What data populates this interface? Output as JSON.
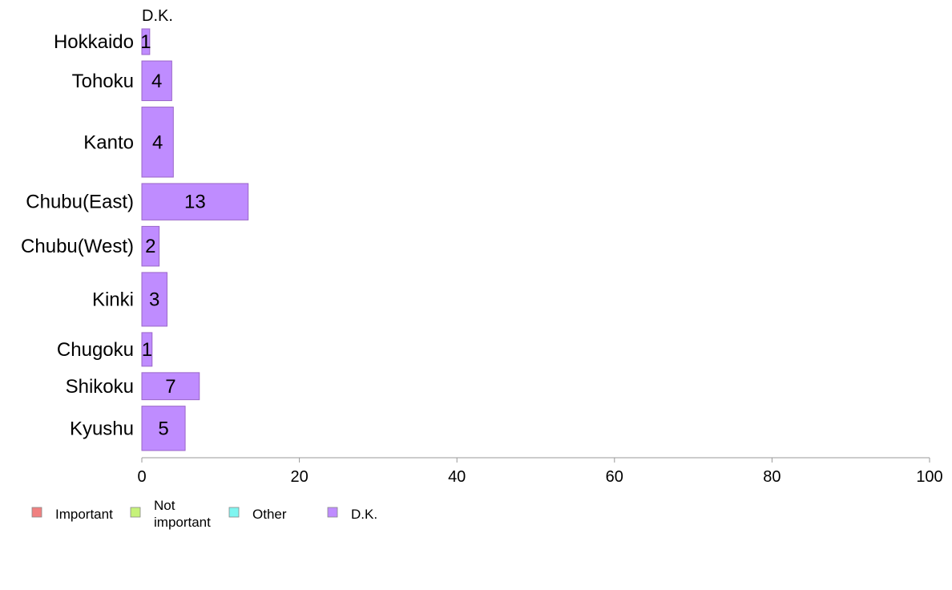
{
  "chart_data": {
    "type": "bar",
    "orientation": "horizontal",
    "stacked": true,
    "categories": [
      "Hokkaido",
      "Tohoku",
      "Kanto",
      "Chubu(East)",
      "Chubu(West)",
      "Kinki",
      "Chugoku",
      "Shikoku",
      "Kyushu"
    ],
    "category_weights": [
      0.55,
      0.85,
      1.5,
      0.78,
      0.85,
      1.15,
      0.72,
      0.58,
      0.95
    ],
    "bar_lengths_pct": [
      1.0,
      3.8,
      4.0,
      13.5,
      2.2,
      3.2,
      1.3,
      7.3,
      5.5
    ],
    "series": [
      {
        "name": "Important",
        "color": "#f08080",
        "values": [
          0,
          0,
          0,
          0,
          0,
          0,
          0,
          0,
          0
        ]
      },
      {
        "name": "Not\nimportant",
        "color": "#c6f27a",
        "values": [
          0,
          0,
          0,
          0,
          0,
          0,
          0,
          0,
          0
        ]
      },
      {
        "name": "Other",
        "color": "#7ff5f0",
        "values": [
          0,
          0,
          0,
          0,
          0,
          0,
          0,
          0,
          0
        ]
      },
      {
        "name": "D.K.",
        "color": "#bf8cff",
        "values": [
          1,
          4,
          4,
          13,
          2,
          3,
          1,
          7,
          5
        ]
      }
    ],
    "series_header": "D.K.",
    "bar_border_color": "#9a66c8",
    "xlim": [
      0,
      100
    ],
    "xticks": [
      "0",
      "20",
      "40",
      "60",
      "80",
      "100"
    ],
    "axis_color": "#999999",
    "grid": false,
    "legend_position": "bottom-left"
  }
}
